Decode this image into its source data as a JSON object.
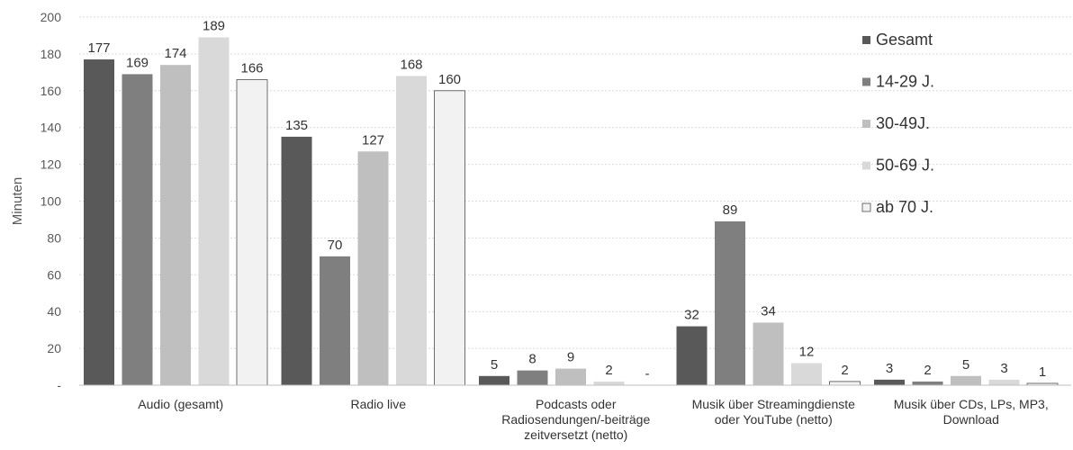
{
  "chart_data": {
    "type": "bar",
    "title": "",
    "xlabel": "",
    "ylabel": "Minuten",
    "ylim": [
      0,
      200
    ],
    "yticks": [
      "-",
      "20",
      "40",
      "60",
      "80",
      "100",
      "120",
      "140",
      "160",
      "180",
      "200"
    ],
    "grid": true,
    "legend_position": "right",
    "categories": [
      [
        "Audio (gesamt)"
      ],
      [
        "Radio live"
      ],
      [
        "Podcasts oder",
        "Radiosendungen/-beiträge",
        "zeitversetzt (netto)"
      ],
      [
        "Musik über Streamingdienste",
        "oder YouTube (netto)"
      ],
      [
        "Musik über CDs, LPs, MP3,",
        "Download"
      ]
    ],
    "series": [
      {
        "name": "Gesamt",
        "color": "#595959",
        "values": [
          177,
          135,
          5,
          32,
          3
        ],
        "labels": [
          "177",
          "135",
          "5",
          "32",
          "3"
        ]
      },
      {
        "name": "14-29 J.",
        "color": "#7f7f7f",
        "values": [
          169,
          70,
          8,
          89,
          2
        ],
        "labels": [
          "169",
          "70",
          "8",
          "89",
          "2"
        ]
      },
      {
        "name": "30-49J.",
        "color": "#bfbfbf",
        "values": [
          174,
          127,
          9,
          34,
          5
        ],
        "labels": [
          "174",
          "127",
          "9",
          "34",
          "5"
        ]
      },
      {
        "name": "50-69 J.",
        "color": "#d9d9d9",
        "values": [
          189,
          168,
          2,
          12,
          3
        ],
        "labels": [
          "189",
          "168",
          "2",
          "12",
          "3"
        ]
      },
      {
        "name": "ab 70 J.",
        "color": "#f2f2f2",
        "values": [
          166,
          160,
          0,
          2,
          1
        ],
        "labels": [
          "166",
          "160",
          "-",
          "2",
          "1"
        ]
      }
    ]
  }
}
